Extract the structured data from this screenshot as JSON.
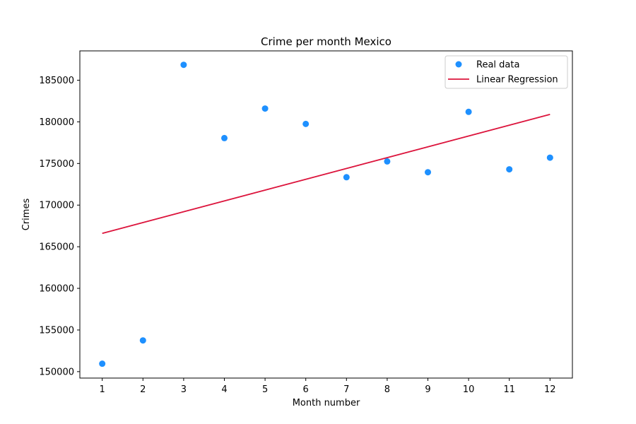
{
  "chart_data": {
    "type": "scatter",
    "title": "Crime per month Mexico",
    "xlabel": "Month number",
    "ylabel": "Crimes",
    "xlim": [
      0.45,
      12.55
    ],
    "ylim": [
      149225,
      188525
    ],
    "xticks": [
      1,
      2,
      3,
      4,
      5,
      6,
      7,
      8,
      9,
      10,
      11,
      12
    ],
    "yticks": [
      150000,
      155000,
      160000,
      165000,
      170000,
      175000,
      180000,
      185000
    ],
    "grid": false,
    "legend_position": "top-right",
    "series": [
      {
        "name": "Real data",
        "kind": "scatter",
        "color": "#1e90ff",
        "x": [
          1,
          2,
          3,
          4,
          5,
          6,
          7,
          8,
          9,
          10,
          11,
          12
        ],
        "y": [
          150950,
          153750,
          186850,
          178050,
          181600,
          179750,
          173350,
          175250,
          173950,
          181200,
          174300,
          175700
        ]
      },
      {
        "name": "Linear Regression",
        "kind": "line",
        "color": "#dc143c",
        "x": [
          1,
          12
        ],
        "y": [
          166600,
          180900
        ]
      }
    ]
  }
}
